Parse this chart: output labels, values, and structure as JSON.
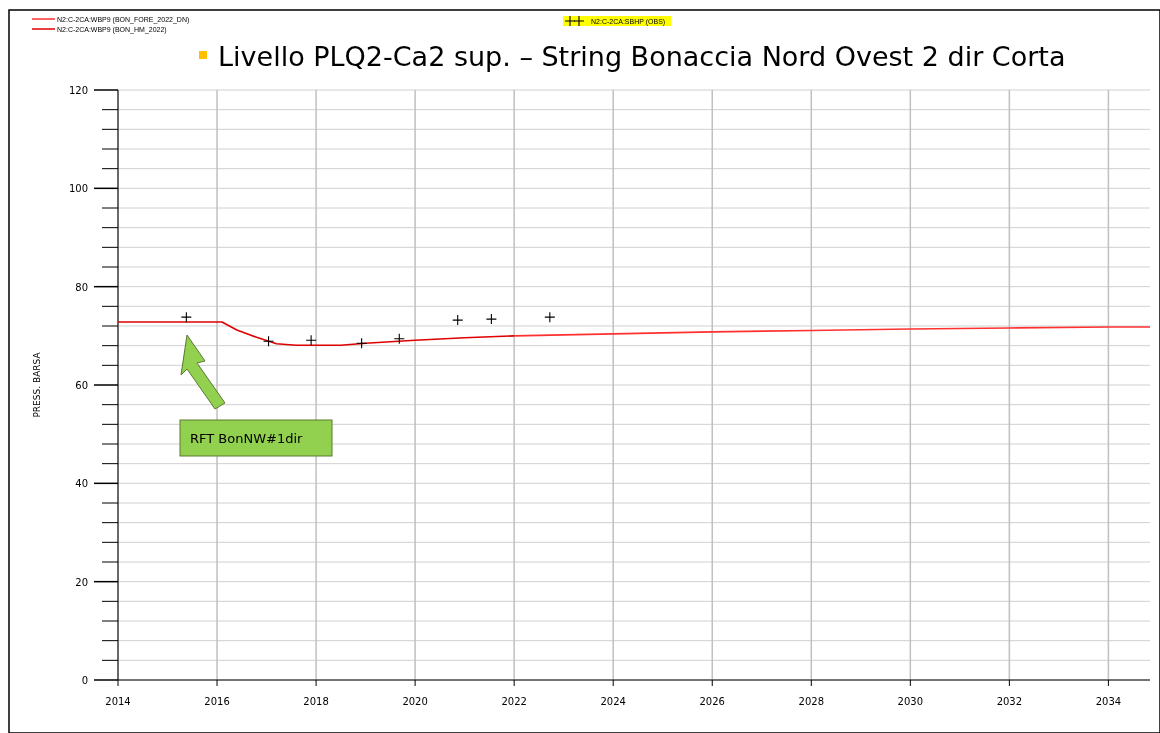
{
  "chart_data": {
    "type": "line",
    "title": "Livello PLQ2-Ca2 sup. – String Bonaccia Nord Ovest 2 dir Corta",
    "ylabel": "PRESS. BARSA",
    "xlim": [
      2014,
      2034.84
    ],
    "xticks": [
      2014,
      2016,
      2018,
      2020,
      2022,
      2024,
      2026,
      2028,
      2030,
      2032,
      2034
    ],
    "ylim": [
      0,
      120
    ],
    "yticks": [
      0,
      {
        "value": 4,
        "label": null
      },
      {
        "value": 8,
        "label": null
      },
      {
        "value": 12,
        "label": null
      },
      {
        "value": 16,
        "label": null
      },
      20,
      {
        "value": 24,
        "label": null
      },
      {
        "value": 28,
        "label": null
      },
      {
        "value": 32,
        "label": null
      },
      {
        "value": 36,
        "label": null
      },
      40,
      {
        "value": 44,
        "label": null
      },
      {
        "value": 48,
        "label": null
      },
      {
        "value": 52,
        "label": null
      },
      {
        "value": 56,
        "label": null
      },
      60,
      {
        "value": 64,
        "label": null
      },
      {
        "value": 68,
        "label": null
      },
      {
        "value": 72,
        "label": null
      },
      {
        "value": 76,
        "label": null
      },
      80,
      {
        "value": 84,
        "label": null
      },
      {
        "value": 88,
        "label": null
      },
      {
        "value": 92,
        "label": null
      },
      {
        "value": 96,
        "label": null
      },
      100,
      {
        "value": 104,
        "label": null
      },
      {
        "value": 108,
        "label": null
      },
      {
        "value": 112,
        "label": null
      },
      {
        "value": 116,
        "label": null
      },
      120
    ],
    "grid": true,
    "legend": "top",
    "series": [
      {
        "name": "N2:C-2CA:WBP9 (BON_FORE_2022_DN)",
        "color": "#ff3030",
        "marker": "none",
        "x": [
          2022,
          2024,
          2026,
          2028,
          2030,
          2032,
          2034,
          2034.84
        ],
        "values": [
          70.0,
          70.4,
          70.8,
          71.1,
          71.4,
          71.6,
          71.8,
          71.8
        ]
      },
      {
        "name": "N2:C-2CA:WBP9 (BON_HM_2022)",
        "color": "#e00000",
        "marker": "none",
        "x": [
          2014,
          2016.1,
          2016.4,
          2016.8,
          2017.2,
          2017.6,
          2018.5,
          2019,
          2020,
          2021,
          2022
        ],
        "values": [
          72.8,
          72.8,
          71.2,
          69.7,
          68.4,
          68.1,
          68.1,
          68.5,
          69.1,
          69.6,
          70.0
        ]
      },
      {
        "name": "N2:C-2CA:SBHP (OBS)",
        "type": "scatter",
        "color": "#000000",
        "marker": "cross",
        "x": [
          2015.38,
          2017.04,
          2017.9,
          2018.92,
          2019.68,
          2020.86,
          2021.54,
          2022.72
        ],
        "values": [
          73.8,
          68.9,
          69.1,
          68.5,
          69.4,
          73.2,
          73.4,
          73.8
        ]
      }
    ],
    "annotations": [
      "RFT BonNW#1dir"
    ]
  }
}
